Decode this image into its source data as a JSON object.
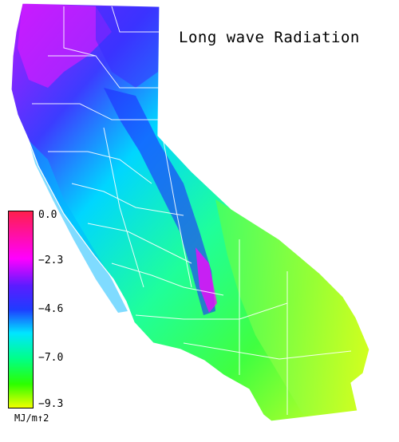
{
  "title": "Long wave Radiation",
  "legend": {
    "ticks": [
      "0.0",
      "−2.3",
      "−4.6",
      "−7.0",
      "−9.3"
    ],
    "units": "MJ/m↑2",
    "range": [
      -9.3,
      0.0
    ],
    "colors": [
      "#ff1f4c",
      "#ff00ff",
      "#5a1cff",
      "#1f3cff",
      "#00e5ff",
      "#00ff88",
      "#2cff00",
      "#f0ff00"
    ]
  },
  "region": "California"
}
